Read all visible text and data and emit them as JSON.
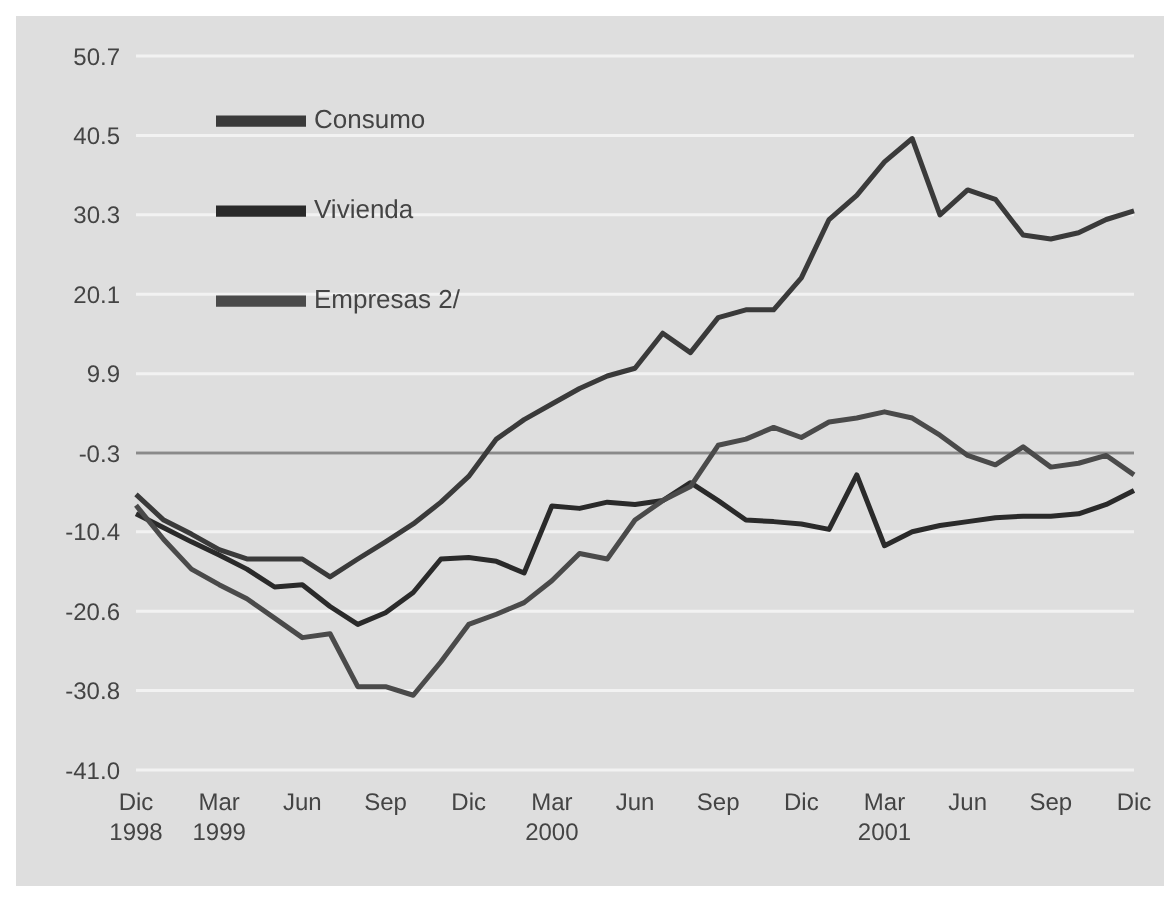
{
  "chart_data": {
    "type": "line",
    "categories": [
      "Dic 1998",
      null,
      null,
      "Mar 1999",
      null,
      null,
      "Jun",
      null,
      null,
      "Sep",
      null,
      null,
      "Dic",
      null,
      null,
      "Mar 2000",
      null,
      null,
      "Jun",
      null,
      null,
      "Sep",
      null,
      null,
      "Dic",
      null,
      null,
      "Mar 2001",
      null,
      null,
      "Jun",
      null,
      null,
      "Sep",
      null,
      null,
      "Dic"
    ],
    "series": [
      {
        "name": "Consumo",
        "color": "#3a3a3a",
        "values": [
          -5.6,
          -8.9,
          -10.7,
          -12.7,
          -13.9,
          -13.9,
          -13.9,
          -16.2,
          -13.9,
          -11.7,
          -9.4,
          -6.6,
          -3.3,
          1.5,
          4.0,
          6.0,
          8.0,
          9.6,
          10.6,
          15.1,
          12.6,
          17.1,
          18.1,
          18.1,
          22.2,
          29.7,
          32.8,
          37.1,
          40.1,
          30.3,
          33.5,
          32.3,
          27.7,
          27.2,
          28.0,
          29.7,
          30.8
        ]
      },
      {
        "name": "Vivienda",
        "color": "#2a2a2a",
        "values": [
          -8.1,
          -9.9,
          -11.7,
          -13.4,
          -15.2,
          -17.5,
          -17.2,
          -20.0,
          -22.3,
          -20.8,
          -18.2,
          -13.9,
          -13.7,
          -14.2,
          -15.7,
          -7.1,
          -7.4,
          -6.6,
          -6.9,
          -6.4,
          -4.1,
          -6.4,
          -8.9,
          -9.1,
          -9.4,
          -10.1,
          -3.1,
          -12.2,
          -10.4,
          -9.6,
          -9.1,
          -8.6,
          -8.4,
          -8.4,
          -8.1,
          -6.9,
          -5.1
        ]
      },
      {
        "name": "Empresas 2/",
        "color": "#4a4a4a",
        "values": [
          -7.0,
          -11.4,
          -15.2,
          -17.2,
          -19.0,
          -21.5,
          -24.0,
          -23.5,
          -30.3,
          -30.3,
          -31.4,
          -27.1,
          -22.3,
          -21.0,
          -19.5,
          -16.7,
          -13.2,
          -13.9,
          -8.9,
          -6.4,
          -4.6,
          0.7,
          1.5,
          3.0,
          1.7,
          3.7,
          4.2,
          5.0,
          4.2,
          2.0,
          -0.6,
          -1.8,
          0.5,
          -2.1,
          -1.6,
          -0.6,
          -3.1
        ]
      }
    ],
    "ylim": [
      -41.0,
      50.7
    ],
    "yticks": [
      {
        "value": 50.7,
        "label": "50.7"
      },
      {
        "value": 40.5,
        "label": "40.5"
      },
      {
        "value": 30.3,
        "label": "30.3"
      },
      {
        "value": 20.1,
        "label": "20.1"
      },
      {
        "value": 9.9,
        "label": "9.9"
      },
      {
        "value": -0.3,
        "label": "-0.3"
      },
      {
        "value": -10.4,
        "label": "-10.4"
      },
      {
        "value": -20.6,
        "label": "-20.6"
      },
      {
        "value": -30.8,
        "label": "-30.8"
      },
      {
        "value": -41.0,
        "label": "-41.0"
      }
    ],
    "ref_lines": [
      {
        "axis": "y",
        "value": -0.3,
        "color": "#8a8a8a"
      }
    ],
    "grid": "y",
    "legend": "top left",
    "marker": "none",
    "line_style": "solid"
  }
}
